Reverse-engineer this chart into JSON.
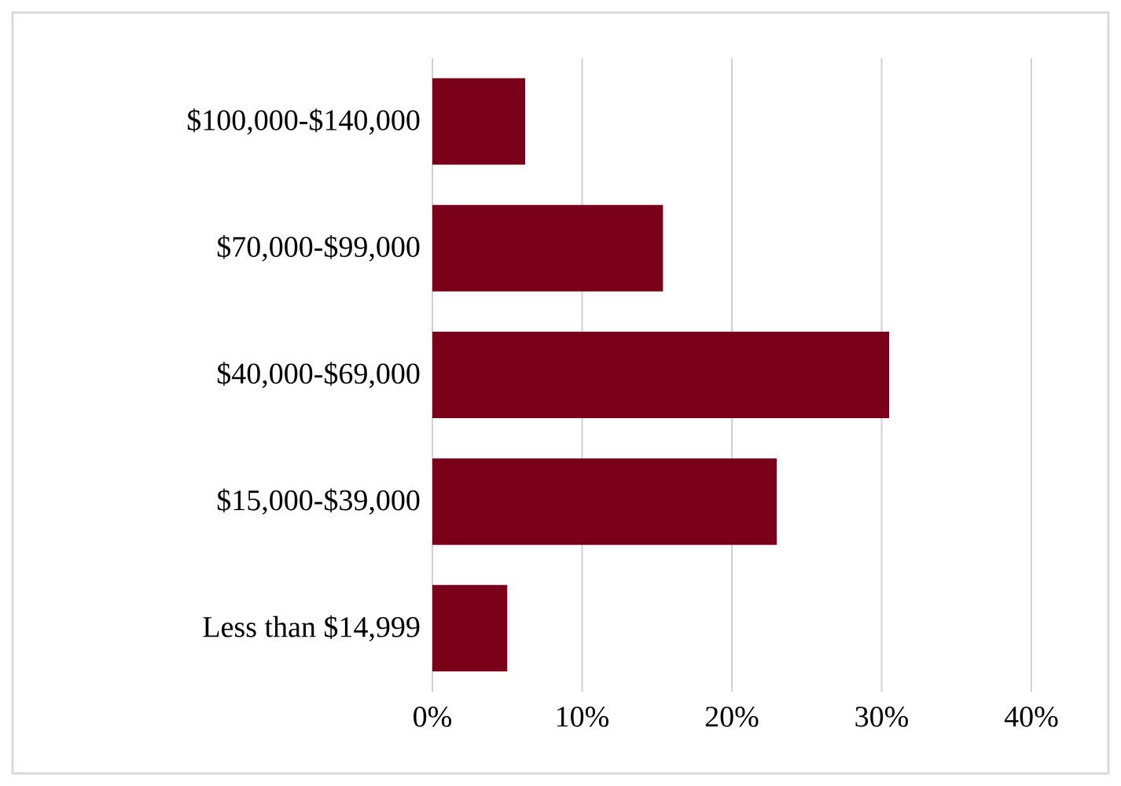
{
  "chart_data": {
    "type": "bar",
    "orientation": "horizontal",
    "categories": [
      "$100,000-$140,000",
      "$70,000-$99,000",
      "$40,000-$69,000",
      "$15,000-$39,000",
      "Less than $14,999"
    ],
    "values": [
      6.2,
      15.4,
      30.5,
      23.0,
      5.0
    ],
    "color": "#7a0019",
    "xlim": [
      0,
      40
    ],
    "xticks": [
      {
        "value": 0,
        "label": "0%"
      },
      {
        "value": 10,
        "label": "10%"
      },
      {
        "value": 20,
        "label": "20%"
      },
      {
        "value": 30,
        "label": "30%"
      },
      {
        "value": 40,
        "label": "40%"
      }
    ],
    "grid": "x"
  }
}
